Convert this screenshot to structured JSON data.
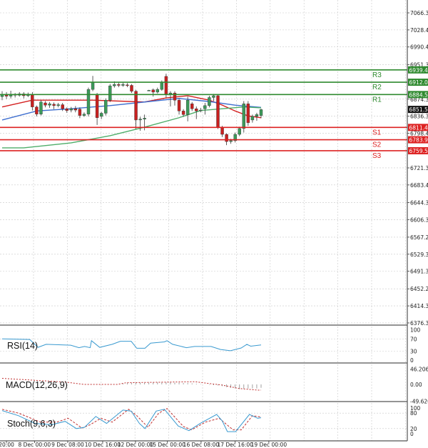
{
  "chart_data": {
    "type": "candlestick",
    "instrument_axis": {
      "price_ticks": [
        "7066.35",
        "7028.40",
        "6990.45",
        "6951.35",
        "6874.30",
        "6836.35",
        "6798.40",
        "6721.35",
        "6683.40",
        "6644.30",
        "6606.35",
        "6567.25",
        "6529.30",
        "6491.35",
        "6452.25",
        "6414.30",
        "6376.35"
      ],
      "ylim": [
        6376.35,
        7066.35
      ],
      "current_price": "6851.50",
      "current_price_value": 6851.5
    },
    "time_ticks": [
      {
        "label": "20:00",
        "bar": 1
      },
      {
        "label": "8 Dec 00:00",
        "bar": 7.5
      },
      {
        "label": "9 Dec 08:00",
        "bar": 15.2
      },
      {
        "label": "10 Dec 16:00",
        "bar": 23.3
      },
      {
        "label": "12 Dec 00:00",
        "bar": 30.9
      },
      {
        "label": "15 Dec 00:00",
        "bar": 38.3
      },
      {
        "label": "16 Dec 08:00",
        "bar": 46.1
      },
      {
        "label": "17 Dec 16:00",
        "bar": 54
      },
      {
        "label": "19 Dec 00:00",
        "bar": 61.8
      }
    ],
    "levels": [
      {
        "name": "R3",
        "value": 6939.45,
        "label": "6939.45",
        "color": "#2f8a2f"
      },
      {
        "name": "R2",
        "value": 6912.02,
        "label": "6912.02",
        "color": "#2f8a2f"
      },
      {
        "name": "R1",
        "value": 6884.58,
        "label": "6884.58",
        "color": "#2f8a2f"
      },
      {
        "name": "S1",
        "value": 6811.42,
        "label": "6811.42",
        "color": "#dd2222"
      },
      {
        "name": "S2",
        "value": 6783.99,
        "label": "6783.99",
        "color": "#dd2222"
      },
      {
        "name": "S3",
        "value": 6759.55,
        "label": "6759.55",
        "color": "#dd2222"
      }
    ],
    "candles_ohlc_as_open_close_high_low": [
      [
        6880,
        6884,
        6892,
        6872
      ],
      [
        6884,
        6881,
        6890,
        6875
      ],
      [
        6881,
        6885,
        6893,
        6876
      ],
      [
        6885,
        6883,
        6888,
        6878
      ],
      [
        6883,
        6886,
        6890,
        6880
      ],
      [
        6886,
        6882,
        6890,
        6876
      ],
      [
        6882,
        6885,
        6889,
        6879
      ],
      [
        6884,
        6857,
        6890,
        6849
      ],
      [
        6857,
        6841,
        6860,
        6836
      ],
      [
        6841,
        6868,
        6872,
        6838
      ],
      [
        6866,
        6861,
        6870,
        6856
      ],
      [
        6861,
        6864,
        6868,
        6855
      ],
      [
        6863,
        6860,
        6867,
        6852
      ],
      [
        6860,
        6862,
        6866,
        6856
      ],
      [
        6862,
        6853,
        6866,
        6848
      ],
      [
        6853,
        6849,
        6856,
        6844
      ],
      [
        6850,
        6853,
        6857,
        6845
      ],
      [
        6853,
        6850,
        6859,
        6845
      ],
      [
        6852,
        6838,
        6856,
        6832
      ],
      [
        6838,
        6841,
        6845,
        6835
      ],
      [
        6841,
        6896,
        6900,
        6836
      ],
      [
        6896,
        6912,
        6926,
        6892
      ],
      [
        6884,
        6833,
        6888,
        6817
      ],
      [
        6836,
        6843,
        6846,
        6830
      ],
      [
        6843,
        6872,
        6876,
        6838
      ],
      [
        6872,
        6904,
        6908,
        6868
      ],
      [
        6904,
        6907,
        6914,
        6900
      ],
      [
        6907,
        6905,
        6911,
        6901
      ],
      [
        6905,
        6907,
        6911,
        6902
      ],
      [
        6906,
        6905,
        6910,
        6901
      ],
      [
        6905,
        6892,
        6908,
        6888
      ],
      [
        6892,
        6828,
        6895,
        6808
      ],
      [
        6828,
        6830,
        6835,
        6804
      ],
      [
        6830,
        6832,
        6840,
        6805
      ],
      [
        6894,
        6894,
        6895,
        6893
      ],
      [
        6895,
        6890,
        6898,
        6880
      ],
      [
        6890,
        6896,
        6900,
        6887
      ],
      [
        6896,
        6912,
        6916,
        6893
      ],
      [
        6925,
        6884,
        6931,
        6878
      ],
      [
        6884,
        6888,
        6892,
        6858
      ],
      [
        6888,
        6872,
        6892,
        6860
      ],
      [
        6872,
        6848,
        6876,
        6840
      ],
      [
        6848,
        6840,
        6852,
        6835
      ],
      [
        6840,
        6872,
        6880,
        6825
      ],
      [
        6864,
        6853,
        6868,
        6848
      ],
      [
        6853,
        6848,
        6858,
        6830
      ],
      [
        6849,
        6850,
        6855,
        6845
      ],
      [
        6853,
        6860,
        6866,
        6840
      ],
      [
        6860,
        6878,
        6882,
        6856
      ],
      [
        6878,
        6882,
        6886,
        6870
      ],
      [
        6882,
        6812,
        6885,
        6808
      ],
      [
        6812,
        6796,
        6815,
        6790
      ],
      [
        6796,
        6780,
        6798,
        6772
      ],
      [
        6780,
        6782,
        6786,
        6775
      ],
      [
        6782,
        6796,
        6800,
        6778
      ],
      [
        6796,
        6809,
        6813,
        6792
      ],
      [
        6809,
        6864,
        6870,
        6800
      ],
      [
        6864,
        6822,
        6870,
        6815
      ],
      [
        6828,
        6836,
        6840,
        6822
      ],
      [
        6836,
        6840,
        6844,
        6826
      ],
      [
        6838,
        6851,
        6853,
        6832
      ]
    ],
    "moving_averages": [
      {
        "color": "#d42020",
        "points": [
          [
            0,
            6857
          ],
          [
            7,
            6872
          ],
          [
            21,
            6872
          ],
          [
            33,
            6868
          ],
          [
            38,
            6877
          ],
          [
            43,
            6882
          ],
          [
            48,
            6872
          ],
          [
            51,
            6861
          ],
          [
            54,
            6848
          ],
          [
            57,
            6837
          ],
          [
            60,
            6833
          ]
        ]
      },
      {
        "color": "#3f6fcf",
        "points": [
          [
            0,
            6828
          ],
          [
            8,
            6848
          ],
          [
            16,
            6853
          ],
          [
            25,
            6860
          ],
          [
            33,
            6868
          ],
          [
            41,
            6876
          ],
          [
            48,
            6869
          ],
          [
            54,
            6861
          ],
          [
            60,
            6856
          ]
        ]
      },
      {
        "color": "#4fae6a",
        "points": [
          [
            0,
            6766
          ],
          [
            5,
            6766
          ],
          [
            16,
            6777
          ],
          [
            25,
            6793
          ],
          [
            33,
            6812
          ],
          [
            41,
            6833
          ],
          [
            46,
            6849
          ],
          [
            51,
            6853
          ],
          [
            56,
            6857
          ],
          [
            60,
            6855
          ]
        ]
      }
    ],
    "rsi": {
      "label": "RSI(14)",
      "ticks": [
        "100",
        "70",
        "30",
        "0"
      ],
      "color": "#3a9ad0",
      "points": [
        [
          0,
          70
        ],
        [
          6.4,
          68
        ],
        [
          8.3,
          42
        ],
        [
          10.2,
          52
        ],
        [
          15.9,
          49
        ],
        [
          17.8,
          41
        ],
        [
          19.1,
          45
        ],
        [
          20.4,
          41
        ],
        [
          20.7,
          64
        ],
        [
          22.6,
          42
        ],
        [
          25.5,
          52
        ],
        [
          27.4,
          62
        ],
        [
          29.9,
          62
        ],
        [
          31.2,
          39
        ],
        [
          33.1,
          39
        ],
        [
          34.4,
          56
        ],
        [
          37.6,
          60
        ],
        [
          38.2,
          64
        ],
        [
          39.5,
          52
        ],
        [
          42.7,
          41
        ],
        [
          44.6,
          45
        ],
        [
          48.4,
          45
        ],
        [
          50.6,
          35
        ],
        [
          52.9,
          31
        ],
        [
          55.4,
          40
        ],
        [
          56.7,
          52
        ],
        [
          57.6,
          46
        ],
        [
          60,
          50
        ]
      ]
    },
    "macd": {
      "label": "MACD(12,26,9)",
      "ticks": [
        "46.206",
        "0.00",
        "-49.626"
      ],
      "ylim": [
        -49.626,
        46.206
      ],
      "signal_color": "#c03030",
      "signal": [
        [
          0,
          18
        ],
        [
          14.6,
          7
        ],
        [
          19,
          0
        ],
        [
          26.7,
          0
        ],
        [
          28.7,
          5
        ],
        [
          44.6,
          8
        ],
        [
          51,
          -2
        ],
        [
          54.8,
          -12
        ],
        [
          59.2,
          -17
        ],
        [
          60,
          -17
        ]
      ],
      "histogram": [
        [
          28,
          3
        ],
        [
          29,
          4
        ],
        [
          30,
          4
        ],
        [
          31,
          5
        ],
        [
          32,
          5
        ],
        [
          33,
          5
        ],
        [
          34,
          5
        ],
        [
          35,
          6
        ],
        [
          36,
          6
        ],
        [
          37,
          6
        ],
        [
          38,
          6
        ],
        [
          39,
          6
        ],
        [
          40,
          5
        ],
        [
          41,
          5
        ],
        [
          42,
          4
        ],
        [
          43,
          4
        ],
        [
          44,
          3
        ],
        [
          45,
          2
        ],
        [
          46,
          1
        ],
        [
          47,
          0
        ],
        [
          48,
          -1
        ],
        [
          49,
          -2
        ],
        [
          50,
          -3
        ],
        [
          51,
          -5
        ],
        [
          52,
          -8
        ],
        [
          53,
          -10
        ],
        [
          54,
          -12
        ],
        [
          55,
          -14
        ],
        [
          56,
          -13
        ],
        [
          57,
          -12
        ],
        [
          58,
          -12
        ],
        [
          59,
          -12
        ],
        [
          60,
          -10
        ]
      ]
    },
    "stochastic": {
      "label": "Stoch(9,6,3)",
      "ticks": [
        "100",
        "80",
        "20",
        "0"
      ],
      "k_color": "#3a9ad0",
      "d_color": "#c03030",
      "k": [
        [
          0,
          90
        ],
        [
          3.8,
          70
        ],
        [
          7.6,
          40
        ],
        [
          11.5,
          35
        ],
        [
          14.6,
          48
        ],
        [
          17.2,
          20
        ],
        [
          19.1,
          25
        ],
        [
          21.7,
          67
        ],
        [
          24.2,
          40
        ],
        [
          28,
          92
        ],
        [
          29.9,
          88
        ],
        [
          31.8,
          40
        ],
        [
          33.1,
          20
        ],
        [
          35.7,
          88
        ],
        [
          37.6,
          95
        ],
        [
          40.8,
          30
        ],
        [
          43.3,
          12
        ],
        [
          45.9,
          40
        ],
        [
          49.7,
          75
        ],
        [
          51,
          50
        ],
        [
          52.2,
          8
        ],
        [
          54.1,
          8
        ],
        [
          57.3,
          75
        ],
        [
          59.2,
          60
        ],
        [
          60,
          62
        ]
      ],
      "d": [
        [
          0,
          95
        ],
        [
          3.8,
          80
        ],
        [
          8.9,
          45
        ],
        [
          12.7,
          45
        ],
        [
          15.3,
          60
        ],
        [
          18.5,
          22
        ],
        [
          20.4,
          35
        ],
        [
          22.9,
          60
        ],
        [
          25.5,
          45
        ],
        [
          29.3,
          95
        ],
        [
          31.2,
          70
        ],
        [
          33.8,
          25
        ],
        [
          36.3,
          80
        ],
        [
          38.2,
          98
        ],
        [
          42,
          28
        ],
        [
          43.9,
          15
        ],
        [
          47.1,
          45
        ],
        [
          50.3,
          60
        ],
        [
          53.5,
          15
        ],
        [
          55.4,
          15
        ],
        [
          58,
          70
        ],
        [
          60,
          65
        ]
      ]
    },
    "colors": {
      "bull": "#3c9a5a",
      "bear": "#c82020",
      "grid": "#c8c8c8"
    },
    "grid": true
  }
}
